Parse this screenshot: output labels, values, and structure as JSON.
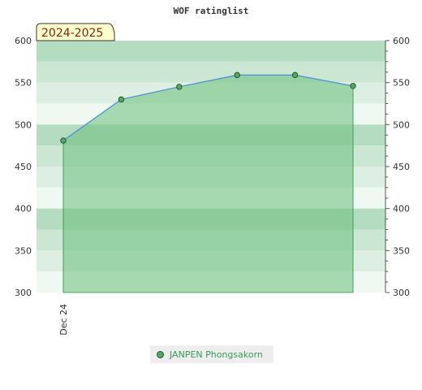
{
  "chart_data": {
    "type": "line",
    "title": "WOF ratinglist",
    "season_label": "2024-2025",
    "x_tick_labels": [
      "Dec 24"
    ],
    "series": [
      {
        "name": "JANPEN Phongsakorn",
        "values": [
          481,
          530,
          545,
          559,
          559,
          546
        ]
      }
    ],
    "ylim": [
      300,
      600
    ],
    "y_ticks": [
      300,
      350,
      400,
      450,
      500,
      550,
      600
    ],
    "grid": true,
    "legend_position": "bottom-center",
    "colors": {
      "line": "#4a90d9",
      "fill": "#6abf7a",
      "marker": "#5aa56a",
      "season_box": "#ffffcc"
    }
  }
}
